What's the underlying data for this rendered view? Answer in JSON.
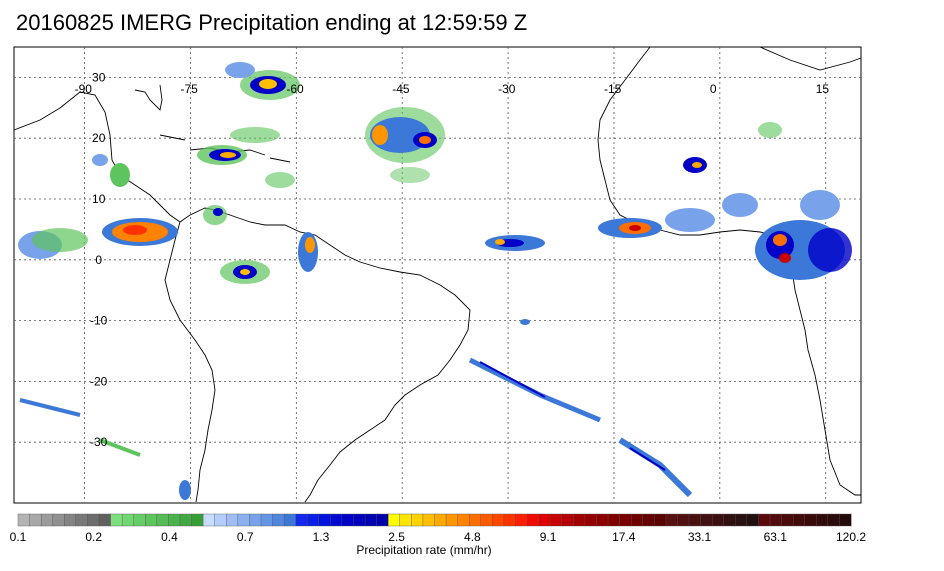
{
  "title": "20160825 IMERG Precipitation ending at 12:59:59 Z",
  "map": {
    "lon_range": [
      -100,
      20
    ],
    "lat_range": [
      -40,
      35
    ],
    "lon_grid": [
      -90,
      -75,
      -60,
      -45,
      -30,
      -15,
      0,
      15
    ],
    "lat_grid": [
      30,
      20,
      10,
      0,
      -10,
      -20,
      -30
    ],
    "lon_labels": [
      "-90",
      "-75",
      "-60",
      "-45",
      "-30",
      "-15",
      "0",
      "15"
    ],
    "lat_labels": [
      "30",
      "20",
      "10",
      "0",
      "-10",
      "-20",
      "-30"
    ]
  },
  "colorbar": {
    "colors": [
      "#b4b4b4",
      "#a8a8a8",
      "#9c9c9c",
      "#909090",
      "#848484",
      "#787878",
      "#6c6c6c",
      "#606060",
      "#7dde7d",
      "#72d672",
      "#68cd68",
      "#5ec45e",
      "#55bb55",
      "#4bb24b",
      "#42a842",
      "#389f38",
      "#c8dcff",
      "#b4cdfa",
      "#a0bef5",
      "#8cb0f0",
      "#78a2ea",
      "#6494e4",
      "#5086de",
      "#3c78d8",
      "#1428f0",
      "#0a1ee6",
      "#0014dc",
      "#000ad2",
      "#0000c8",
      "#0000be",
      "#0000b4",
      "#0000aa",
      "#ffff00",
      "#ffe600",
      "#ffd200",
      "#ffbe00",
      "#ffaa00",
      "#ff9600",
      "#ff8200",
      "#ff6e00",
      "#ff5a00",
      "#ff4600",
      "#ff3200",
      "#ff1e00",
      "#f00a00",
      "#dc0000",
      "#c80000",
      "#b40000",
      "#a00000",
      "#960000",
      "#8c0000",
      "#820000",
      "#780000",
      "#6e0000",
      "#640000",
      "#5a0000",
      "#5a1010",
      "#521010",
      "#4a1010",
      "#421010",
      "#3a1010",
      "#321010",
      "#2a1010",
      "#221010",
      "#5a0a0a",
      "#520a0a",
      "#4a0a0a",
      "#420a0a",
      "#3a0a0a",
      "#320a0a",
      "#2a0a0a",
      "#220a0a"
    ],
    "ticks": [
      "0.1",
      "0.2",
      "0.4",
      "0.7",
      "1.3",
      "2.5",
      "4.8",
      "9.1",
      "17.4",
      "33.1",
      "63.1",
      "120.2"
    ],
    "label": "Precipitation rate (mm/hr)"
  }
}
